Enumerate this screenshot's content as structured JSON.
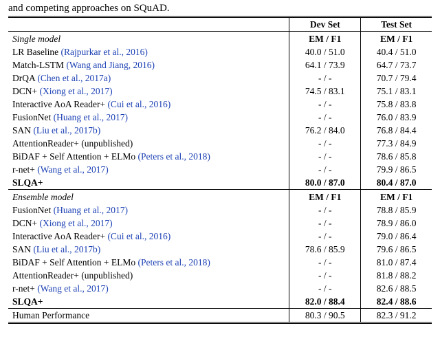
{
  "caption": "and competing approaches on SQuAD.",
  "columns": {
    "dev": "Dev Set",
    "test": "Test Set"
  },
  "metric_label": "EM / F1",
  "sections": [
    {
      "title": "Single model",
      "rows": [
        {
          "name": "LR Baseline ",
          "cite": "(Rajpurkar et al., 2016)",
          "dev": "40.0 / 51.0",
          "test": "40.4 / 51.0"
        },
        {
          "name": "Match-LSTM ",
          "cite": "(Wang and Jiang, 2016)",
          "dev": "64.1 / 73.9",
          "test": "64.7 / 73.7"
        },
        {
          "name": "DrQA ",
          "cite": "(Chen et al., 2017a)",
          "dev": "- / -",
          "test": "70.7 / 79.4"
        },
        {
          "name": "DCN+ ",
          "cite": "(Xiong et al., 2017)",
          "dev": "74.5 / 83.1",
          "test": "75.1 / 83.1"
        },
        {
          "name": "Interactive AoA Reader+ ",
          "cite": "(Cui et al., 2016)",
          "dev": "- / -",
          "test": "75.8 / 83.8"
        },
        {
          "name": "FusionNet ",
          "cite": "(Huang et al., 2017)",
          "dev": "- / -",
          "test": "76.0 / 83.9"
        },
        {
          "name": "SAN ",
          "cite": "(Liu et al., 2017b)",
          "dev": "76.2 / 84.0",
          "test": "76.8 / 84.4"
        },
        {
          "name": "AttentionReader+ (unpublished)",
          "cite": "",
          "dev": "- / -",
          "test": "77.3 / 84.9"
        },
        {
          "name": "BiDAF + Self Attention + ELMo ",
          "cite": "(Peters et al., 2018)",
          "dev": "- / -",
          "test": "78.6 / 85.8"
        },
        {
          "name": "r-net+ ",
          "cite": "(Wang et al., 2017)",
          "dev": "- / -",
          "test": "79.9 / 86.5"
        },
        {
          "name": "SLQA+",
          "cite": "",
          "dev": "80.0 / 87.0",
          "test": "80.4 / 87.0",
          "bold": true
        }
      ]
    },
    {
      "title": "Ensemble model",
      "rows": [
        {
          "name": "FusionNet ",
          "cite": "(Huang et al., 2017)",
          "dev": "- / -",
          "test": "78.8 / 85.9"
        },
        {
          "name": "DCN+ ",
          "cite": "(Xiong et al., 2017)",
          "dev": "- / -",
          "test": "78.9 / 86.0"
        },
        {
          "name": "Interactive AoA Reader+ ",
          "cite": "(Cui et al., 2016)",
          "dev": "- / -",
          "test": "79.0 / 86.4"
        },
        {
          "name": "SAN ",
          "cite": "(Liu et al., 2017b)",
          "dev": "78.6 / 85.9",
          "test": "79.6 / 86.5"
        },
        {
          "name": "BiDAF + Self Attention + ELMo ",
          "cite": "(Peters et al., 2018)",
          "dev": "- / -",
          "test": "81.0 / 87.4"
        },
        {
          "name": "AttentionReader+ (unpublished)",
          "cite": "",
          "dev": "- / -",
          "test": "81.8 / 88.2"
        },
        {
          "name": "r-net+ ",
          "cite": "(Wang et al., 2017)",
          "dev": "- / -",
          "test": "82.6 / 88.5"
        },
        {
          "name": "SLQA+",
          "cite": "",
          "dev": "82.0 / 88.4",
          "test": "82.4 / 88.6",
          "bold": true
        }
      ]
    }
  ],
  "footer": {
    "name": "Human Performance",
    "dev": "80.3 / 90.5",
    "test": "82.3 / 91.2"
  },
  "colors": {
    "cite": "#1a3fb3",
    "text": "#000000",
    "bg": "#ffffff"
  },
  "fonts": {
    "family": "Times New Roman",
    "base_size": 13.5
  }
}
